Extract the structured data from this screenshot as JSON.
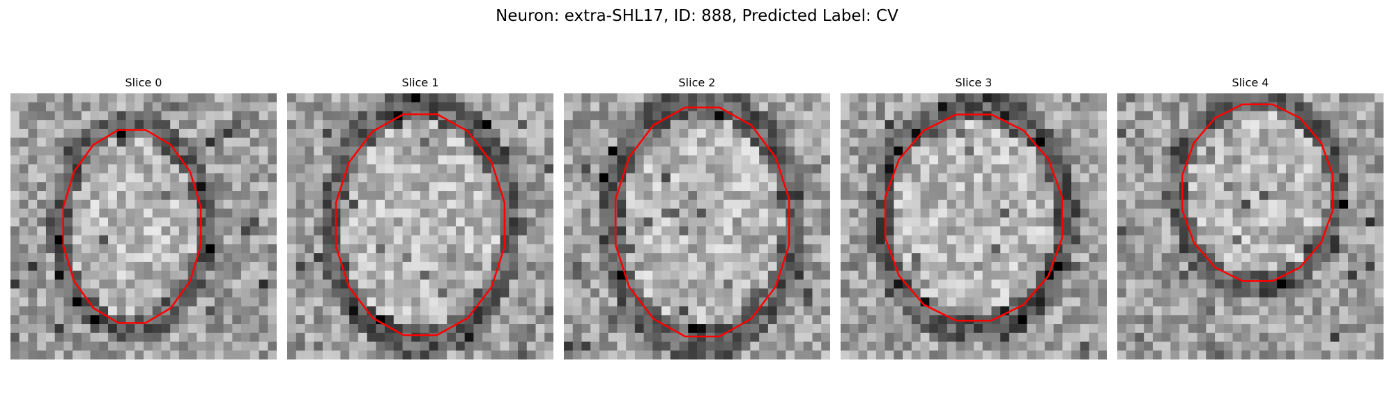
{
  "figure": {
    "title": "Neuron: extra-SHL17, ID: 888, Predicted Label: CV",
    "contour_color": "#ff0000",
    "colormap": "gray",
    "panels": [
      {
        "title": "Slice 0",
        "image_kind": "grayscale-em-patch-with-red-contour"
      },
      {
        "title": "Slice 1",
        "image_kind": "grayscale-em-patch-with-red-contour"
      },
      {
        "title": "Slice 2",
        "image_kind": "grayscale-em-patch-with-red-contour"
      },
      {
        "title": "Slice 3",
        "image_kind": "grayscale-em-patch-with-red-contour"
      },
      {
        "title": "Slice 4",
        "image_kind": "grayscale-em-patch-with-red-contour"
      }
    ]
  }
}
